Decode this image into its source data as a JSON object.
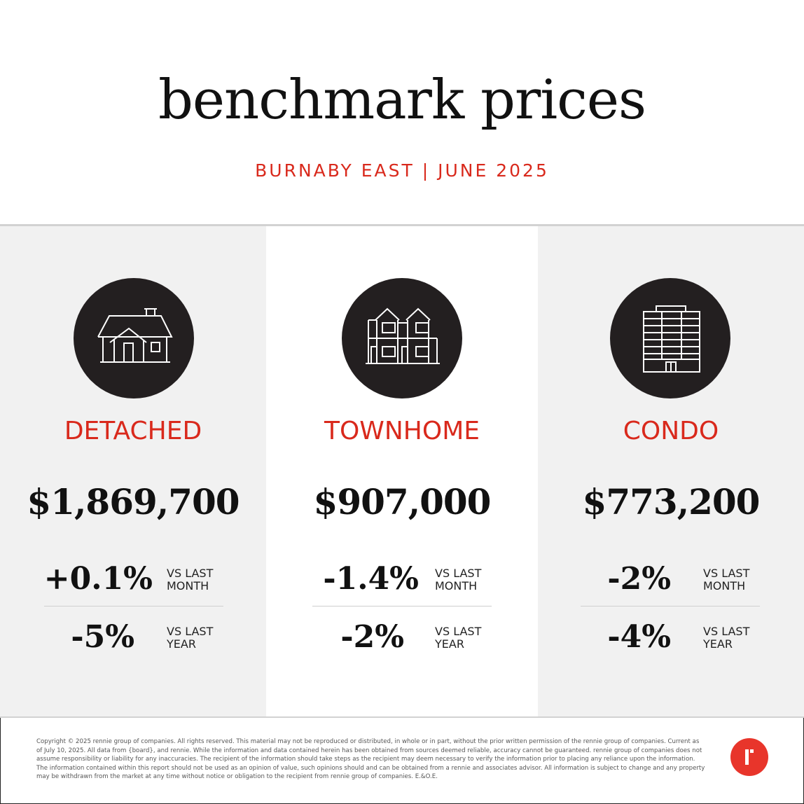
{
  "header": {
    "title": "benchmark prices",
    "subtitle": "BURNABY EAST | JUNE 2025"
  },
  "columns": [
    {
      "icon": "detached-house-icon",
      "type": "DETACHED",
      "price": "$1,869,700",
      "month_change": "+0.1%",
      "month_label": "VS LAST MONTH",
      "year_change": "-5%",
      "year_label": "VS LAST YEAR"
    },
    {
      "icon": "townhome-icon",
      "type": "TOWNHOME",
      "price": "$907,000",
      "month_change": "-1.4%",
      "month_label": "VS LAST MONTH",
      "year_change": "-2%",
      "year_label": "VS LAST YEAR"
    },
    {
      "icon": "condo-building-icon",
      "type": "CONDO",
      "price": "$773,200",
      "month_change": "-2%",
      "month_label": "VS LAST MONTH",
      "year_change": "-4%",
      "year_label": "VS LAST YEAR"
    }
  ],
  "footer": {
    "disclaimer": "Copyright © 2025 rennie group of companies. All rights reserved. This material may not be reproduced or distributed, in whole or in part, without the prior written permission of the rennie group of companies. Current as of July 10, 2025. All data from {board}, and rennie. While the information and data contained herein has been obtained from sources deemed reliable, accuracy cannot be guaranteed. rennie group of companies does not assume responsibility or liability for any inaccuracies. The recipient of the information should take steps as the recipient may deem necessary to verify the information prior to placing any reliance upon the information. The information contained within this report should not be used as an opinion of value, such opinions should and can be obtained from a rennie and associates advisor. All information is subject to change and any property may be withdrawn from the market at any time without notice or obligation to the recipient from rennie group of companies. E.&O.E.",
    "logo": "rennie-logo-icon"
  },
  "colors": {
    "accent": "#d9291c",
    "icon_circle": "#231f20",
    "panel_grey": "#f1f1f1",
    "logo_red": "#e8352b"
  }
}
